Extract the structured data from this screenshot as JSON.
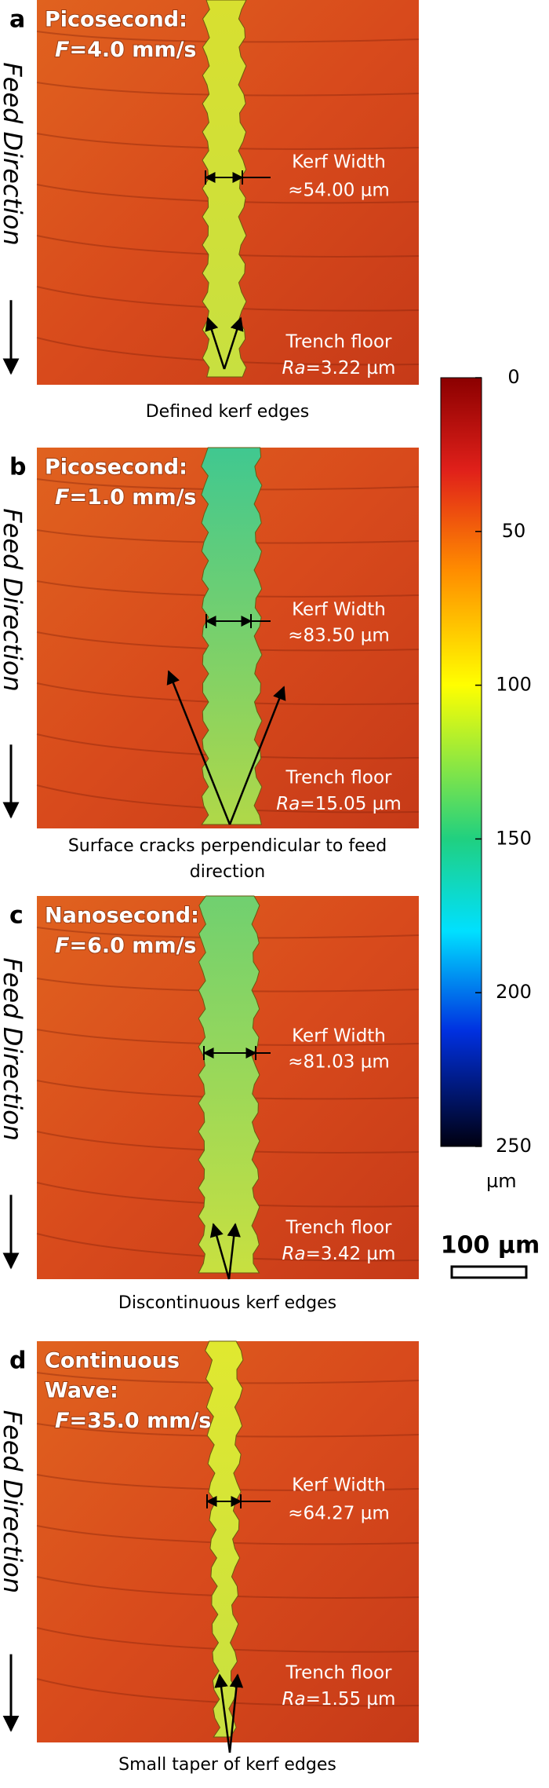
{
  "panels": [
    {
      "label": "a",
      "title_lines": [
        "Picosecond:"
      ],
      "speed": {
        "symbol": "F",
        "text": "=4.0 mm/s"
      },
      "feed_direction": "Feed Direction",
      "kerf_width": [
        "Kerf Width",
        "≈54.00 µm"
      ],
      "trench_floor": {
        "heading": "Trench floor",
        "symbol": "Ra",
        "text": "=3.22 µm"
      },
      "caption": [
        "Defined kerf edges"
      ]
    },
    {
      "label": "b",
      "title_lines": [
        "Picosecond:"
      ],
      "speed": {
        "symbol": "F",
        "text": "=1.0 mm/s"
      },
      "feed_direction": "Feed Direction",
      "kerf_width": [
        "Kerf Width",
        "≈83.50 µm"
      ],
      "trench_floor": {
        "heading": "Trench floor",
        "symbol": "Ra",
        "text": "=15.05 µm"
      },
      "caption": [
        "Surface cracks perpendicular to feed",
        "direction"
      ]
    },
    {
      "label": "c",
      "title_lines": [
        "Nanosecond:"
      ],
      "speed": {
        "symbol": "F",
        "text": "=6.0 mm/s"
      },
      "feed_direction": "Feed Direction",
      "kerf_width": [
        "Kerf Width",
        "≈81.03 µm"
      ],
      "trench_floor": {
        "heading": "Trench floor",
        "symbol": "Ra",
        "text": "=3.42 µm"
      },
      "caption": [
        "Discontinuous kerf edges"
      ]
    },
    {
      "label": "d",
      "title_lines": [
        "Continuous",
        "Wave:"
      ],
      "speed": {
        "symbol": "F",
        "text": "=35.0 mm/s"
      },
      "feed_direction": "Feed Direction",
      "kerf_width": [
        "Kerf Width",
        "≈64.27 µm"
      ],
      "trench_floor": {
        "heading": "Trench floor",
        "symbol": "Ra",
        "text": "=1.55 µm"
      },
      "caption": [
        "Small taper of kerf edges"
      ]
    }
  ],
  "colorbar": {
    "ticks": [
      0,
      50,
      100,
      150,
      200,
      250
    ],
    "unit": "µm"
  },
  "scale_bar": "100 µm"
}
